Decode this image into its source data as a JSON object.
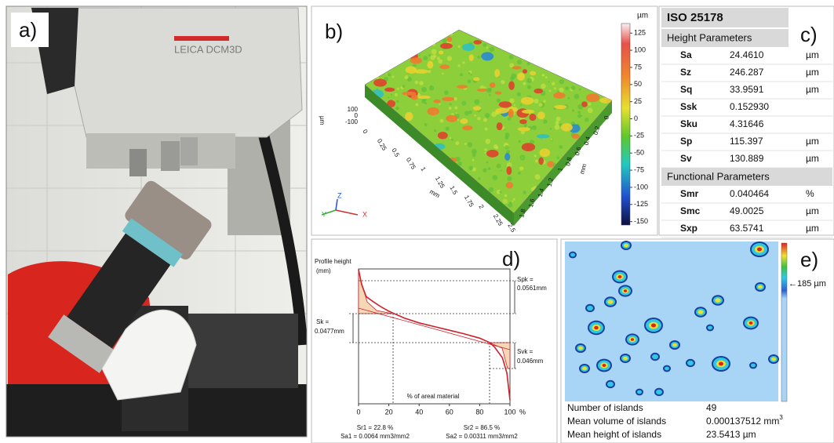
{
  "panels": {
    "a": {
      "label": "a)",
      "instrument": "LEICA DCM3D"
    },
    "b": {
      "label": "b)",
      "colorbar": {
        "unit": "µm",
        "lim": [
          -155,
          139
        ],
        "ticks": [
          125,
          100,
          75,
          50,
          25,
          0,
          -25,
          -50,
          -75,
          -100,
          -125,
          -150
        ]
      },
      "x_axis": {
        "label": "mm",
        "ticks": [
          0,
          0.25,
          0.5,
          0.75,
          1,
          1.25,
          1.5,
          1.75,
          2,
          2.25,
          2.5
        ]
      },
      "y_axis": {
        "label": "mm",
        "ticks": [
          0,
          0.2,
          0.4,
          0.6,
          0.8,
          1,
          1.2,
          1.4,
          1.6,
          1.8
        ]
      },
      "z_axis": {
        "label": "µm",
        "ticks": [
          100,
          0,
          -100
        ]
      },
      "triad": [
        "Z",
        "Y",
        "X"
      ]
    },
    "c": {
      "label": "c)",
      "title": "ISO 25178",
      "sections": [
        {
          "title": "Height Parameters",
          "rows": [
            [
              "Sa",
              "24.4610",
              "µm"
            ],
            [
              "Sz",
              "246.287",
              "µm"
            ],
            [
              "Sq",
              "33.9591",
              "µm"
            ],
            [
              "Ssk",
              "0.152930"
            ],
            [
              "Sku",
              "4.31646"
            ],
            [
              "Sp",
              "115.397",
              "µm"
            ],
            [
              "Sv",
              "130.889",
              "µm"
            ]
          ]
        },
        {
          "title": "Functional Parameters",
          "rows": [
            [
              "Smr",
              "0.040464",
              "%"
            ],
            [
              "Smc",
              "49.0025",
              "µm"
            ],
            [
              "Sxp",
              "63.5741",
              "µm"
            ]
          ]
        }
      ]
    },
    "d": {
      "label": "d)",
      "chart_data": {
        "type": "line",
        "y_label": [
          "Profile height",
          "(mm)"
        ],
        "x_label": "% of areal material",
        "x_unit": "%",
        "x": [
          0,
          2,
          5,
          10,
          15,
          20,
          22.8,
          30,
          40,
          50,
          60,
          70,
          80,
          86.5,
          90,
          95,
          98,
          100
        ],
        "values": [
          0.119,
          0.095,
          0.075,
          0.066,
          0.058,
          0.051,
          0.048,
          0.04,
          0.032,
          0.026,
          0.02,
          0.014,
          0.007,
          0.0,
          -0.008,
          -0.025,
          -0.05,
          -0.094
        ],
        "xlim": [
          0,
          100
        ],
        "xticks": [
          0,
          20,
          40,
          60,
          80,
          100
        ],
        "ylim": [
          -0.1,
          0.12
        ],
        "color": "#d0202a"
      },
      "annotations": {
        "spk": [
          "Spk =",
          "0.0561mm"
        ],
        "sk": [
          "Sk =",
          "0.0477mm"
        ],
        "svk": [
          "Svk =",
          "0.046mm"
        ],
        "left": [
          "Sr1 = 22.8 %",
          "Sa1 = 0.0064 mm3/mm2"
        ],
        "right": [
          "Sr2 = 86.5 %",
          "Sa2 = 0.00311 mm3/mm2"
        ]
      }
    },
    "e": {
      "label": "e)",
      "colorbar_label": "←185 µm",
      "stats": [
        {
          "name": "Number of islands",
          "value": "49"
        },
        {
          "name": "Mean volume of islands",
          "value": "0.000137512 mm",
          "sup": "3"
        },
        {
          "name": "Mean height of islands",
          "value": "23.5413 µm"
        }
      ]
    }
  }
}
